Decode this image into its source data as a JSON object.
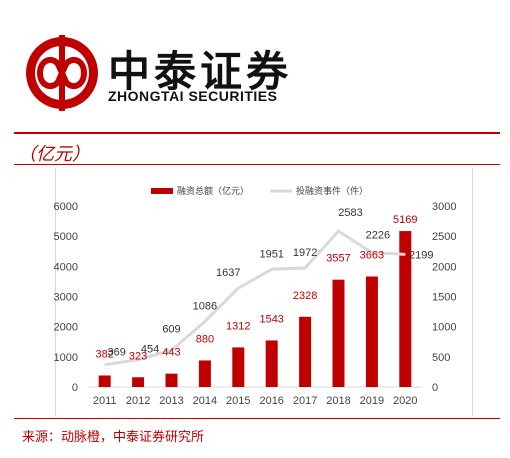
{
  "brand": {
    "name_cn": "中泰证券",
    "name_en": "ZHONGTAI SECURITIES",
    "color": "#c00000"
  },
  "unit_label": "（亿元）",
  "source_note": "来源：动脉橙，中泰证券研究所",
  "chart_data": {
    "type": "bar",
    "categories": [
      "2011",
      "2012",
      "2013",
      "2014",
      "2015",
      "2016",
      "2017",
      "2018",
      "2019",
      "2020"
    ],
    "series": [
      {
        "name": "融资总额（亿元）",
        "type": "bar",
        "axis": "left",
        "color": "#c00000",
        "values": [
          382,
          323,
          443,
          880,
          1312,
          1543,
          2328,
          3557,
          3663,
          5169
        ]
      },
      {
        "name": "投融资事件（件）",
        "type": "line",
        "axis": "right",
        "color": "#d9d9d9",
        "values": [
          369,
          454,
          609,
          1086,
          1637,
          1951,
          1972,
          2583,
          2226,
          2199
        ]
      }
    ],
    "y_left": {
      "ylim": [
        0,
        6000
      ],
      "ticks": [
        0,
        1000,
        2000,
        3000,
        4000,
        5000,
        6000
      ]
    },
    "y_right": {
      "ylim": [
        0,
        3000
      ],
      "ticks": [
        0,
        500,
        1000,
        1500,
        2000,
        2500,
        3000
      ]
    },
    "legend_position": "top",
    "grid": false
  }
}
